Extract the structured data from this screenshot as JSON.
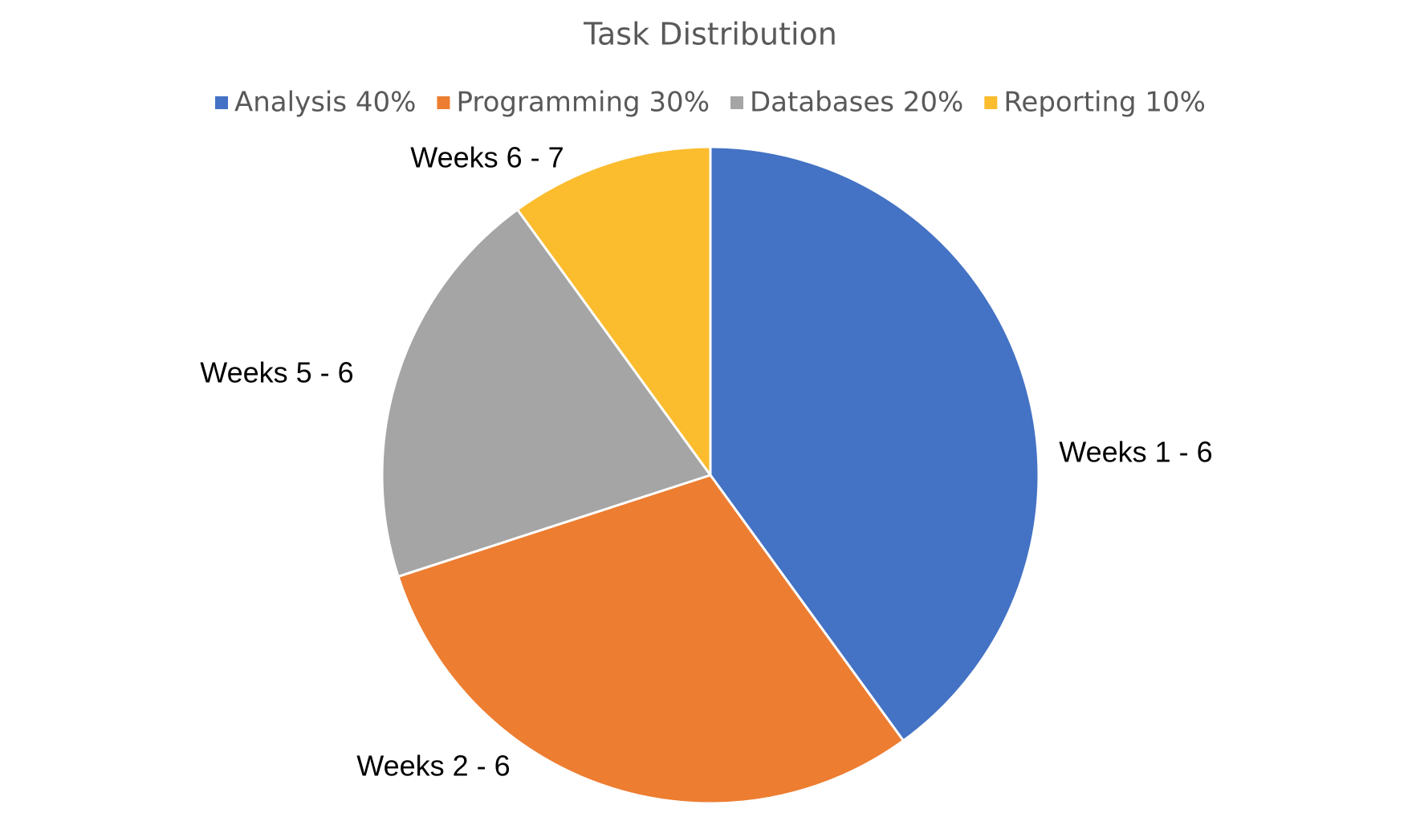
{
  "chart_data": {
    "type": "pie",
    "title": "Task Distribution",
    "categories": [
      "Analysis 40%",
      "Programming 30%",
      "Databases 20%",
      "Reporting 10%"
    ],
    "values": [
      40,
      30,
      20,
      10
    ],
    "labels": [
      "Weeks 1 - 6",
      "Weeks 2 - 6",
      "Weeks 5 - 6",
      "Weeks 6 - 7"
    ],
    "colors": [
      "#4472c4",
      "#ed7d31",
      "#a5a5a5",
      "#fbbc2e"
    ],
    "legend": "top"
  }
}
